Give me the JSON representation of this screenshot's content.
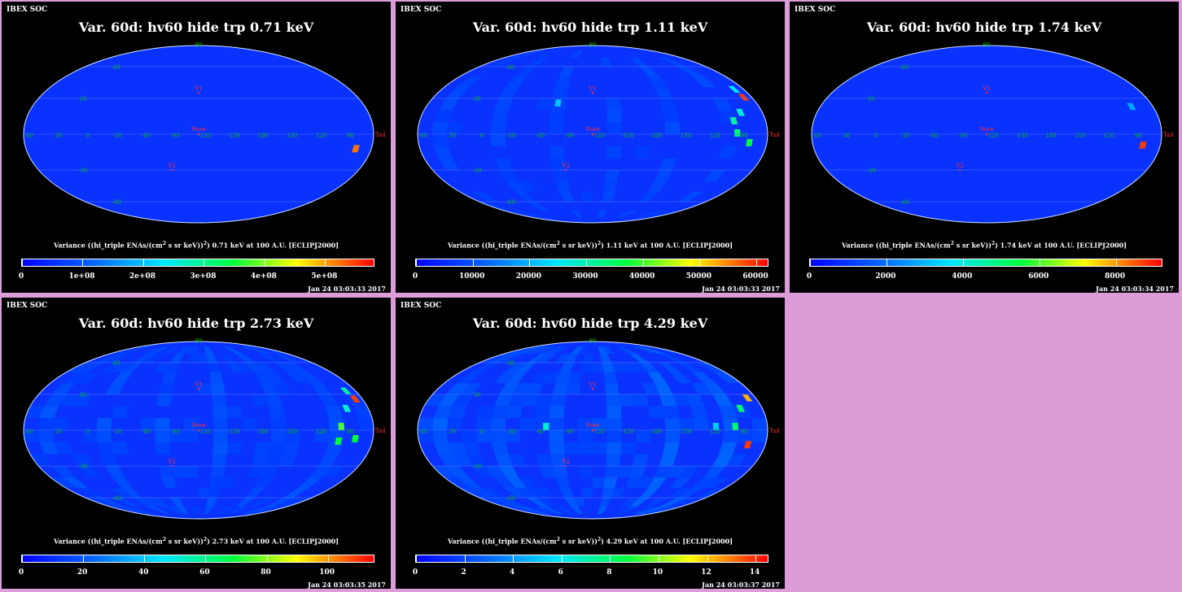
{
  "header": "IBEX SOC",
  "common_labels": {
    "nose": "Nose",
    "tail": "Tail",
    "v1": "V1",
    "v2": "V2",
    "lon_labels": [
      "60",
      "30",
      "0",
      "-30",
      "-60",
      "-90",
      "-120",
      "-150",
      "180",
      "150",
      "120",
      "90"
    ],
    "lat_labels": [
      "60",
      "30",
      "-30",
      "-60"
    ],
    "lat_top": "90"
  },
  "colors": {
    "ocean": "#0a32ff",
    "grid": "#4b6bff",
    "background": "#000000",
    "label_green": "#00c000",
    "label_red": "#ff3030"
  },
  "chart_data": [
    {
      "type": "heatmap",
      "title": "Var. 60d: hv60 hide trp 0.71 keV",
      "colorbar_label_pre": "Variance ((hi_triple ENAs/(cm",
      "colorbar_label_sup": "2",
      "colorbar_label_mid": " s sr keV))",
      "colorbar_label_sup2": "2",
      "colorbar_label_post": ") 0.71 keV at 100 A.U. [ECLIPJ2000]",
      "colorbar_ticks": [
        "0",
        "1e+08",
        "2e+08",
        "3e+08",
        "4e+08",
        "5e+08"
      ],
      "colorbar_range": [
        0,
        580000000.0
      ],
      "timestamp": "Jan 24 03:03:33 2017",
      "texture": 0.0,
      "hot": [
        {
          "lon": -167,
          "lat": -15,
          "value": 0.9
        }
      ]
    },
    {
      "type": "heatmap",
      "title": "Var. 60d: hv60 hide trp 1.11 keV",
      "colorbar_label_pre": "Variance ((hi_triple ENAs/(cm",
      "colorbar_label_sup": "2",
      "colorbar_label_mid": " s sr keV))",
      "colorbar_label_sup2": "2",
      "colorbar_label_post": ") 1.11 keV at 100 A.U. [ECLIPJ2000]",
      "colorbar_ticks": [
        "0",
        "10000",
        "20000",
        "30000",
        "40000",
        "50000",
        "60000"
      ],
      "colorbar_range": [
        0,
        62000
      ],
      "timestamp": "Jan 24 03:03:33 2017",
      "texture": 0.35,
      "hot": [
        {
          "lon": -174,
          "lat": 28,
          "value": 0.95
        },
        {
          "lon": -172,
          "lat": 35,
          "value": 0.4
        },
        {
          "lon": -165,
          "lat": -10,
          "value": 0.6
        },
        {
          "lon": -152,
          "lat": -2,
          "value": 0.55
        },
        {
          "lon": -150,
          "lat": 8,
          "value": 0.5
        },
        {
          "lon": -160,
          "lat": 15,
          "value": 0.45
        },
        {
          "lon": 35,
          "lat": 23,
          "value": 0.35
        }
      ]
    },
    {
      "type": "heatmap",
      "title": "Var. 60d: hv60 hide trp 1.74 keV",
      "colorbar_label_pre": "Variance ((hi_triple ENAs/(cm",
      "colorbar_label_sup": "2",
      "colorbar_label_mid": " s sr keV))",
      "colorbar_label_sup2": "2",
      "colorbar_label_post": ") 1.74 keV at 100 A.U. [ECLIPJ2000]",
      "colorbar_ticks": [
        "0",
        "2000",
        "4000",
        "6000",
        "8000"
      ],
      "colorbar_range": [
        0,
        9200
      ],
      "timestamp": "Jan 24 03:03:34 2017",
      "texture": 0.1,
      "hot": [
        {
          "lon": -165,
          "lat": -12,
          "value": 0.95
        },
        {
          "lon": -160,
          "lat": 20,
          "value": 0.3
        }
      ]
    },
    {
      "type": "heatmap",
      "title": "Var. 60d: hv60 hide trp 2.73 keV",
      "colorbar_label_pre": "Variance ((hi_triple ENAs/(cm",
      "colorbar_label_sup": "2",
      "colorbar_label_mid": " s sr keV))",
      "colorbar_label_sup2": "2",
      "colorbar_label_post": ") 2.73 keV at 100 A.U. [ECLIPJ2000]",
      "colorbar_ticks": [
        "0",
        "20",
        "40",
        "60",
        "80",
        "100"
      ],
      "colorbar_range": [
        0,
        115
      ],
      "timestamp": "Jan 24 03:03:35 2017",
      "texture": 0.45,
      "hot": [
        {
          "lon": -175,
          "lat": 23,
          "value": 0.95
        },
        {
          "lon": -172,
          "lat": 30,
          "value": 0.5
        },
        {
          "lon": -165,
          "lat": -10,
          "value": 0.6
        },
        {
          "lon": -150,
          "lat": 0,
          "value": 0.65
        },
        {
          "lon": -160,
          "lat": 15,
          "value": 0.45
        },
        {
          "lon": -148,
          "lat": -12,
          "value": 0.6
        }
      ]
    },
    {
      "type": "heatmap",
      "title": "Var. 60d: hv60 hide trp 4.29 keV",
      "colorbar_label_pre": "Variance ((hi_triple ENAs/(cm",
      "colorbar_label_sup": "2",
      "colorbar_label_mid": " s sr keV))",
      "colorbar_label_sup2": "2",
      "colorbar_label_post": ") 4.29 keV at 100 A.U. [ECLIPJ2000]",
      "colorbar_ticks": [
        "0",
        "2",
        "4",
        "6",
        "8",
        "10",
        "12",
        "14"
      ],
      "colorbar_range": [
        0,
        14.5
      ],
      "timestamp": "Jan 24 03:03:37 2017",
      "texture": 0.6,
      "hot": [
        {
          "lon": -174,
          "lat": 24,
          "value": 0.85
        },
        {
          "lon": -165,
          "lat": -15,
          "value": 0.95
        },
        {
          "lon": -160,
          "lat": 15,
          "value": 0.55
        },
        {
          "lon": -150,
          "lat": 0,
          "value": 0.55
        },
        {
          "lon": 45,
          "lat": 0,
          "value": 0.45
        },
        {
          "lon": -130,
          "lat": 0,
          "value": 0.35
        }
      ]
    }
  ]
}
